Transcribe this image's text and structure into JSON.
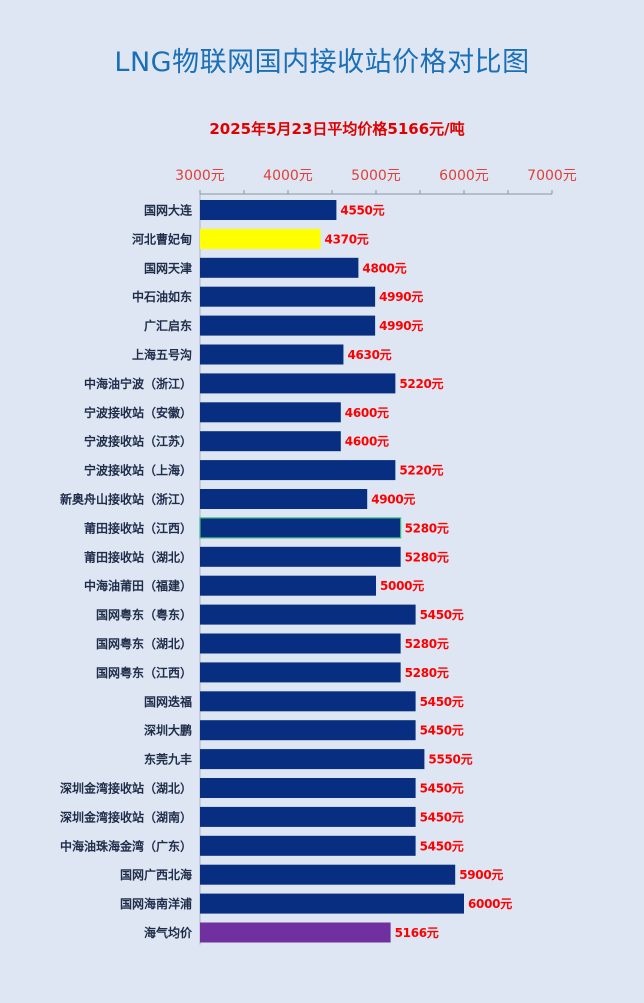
{
  "title": "LNG物联网国内接收站价格对比图",
  "subtitle": "2025年5月23日平均价格5166元/吨",
  "chart_data": {
    "type": "bar",
    "orientation": "horizontal",
    "xlim": [
      3000,
      7000
    ],
    "ticks": [
      {
        "value": 3000,
        "label": "3000元"
      },
      {
        "value": 4000,
        "label": "4000元"
      },
      {
        "value": 5000,
        "label": "5000元"
      },
      {
        "value": 6000,
        "label": "6000元"
      },
      {
        "value": 7000,
        "label": "7000元"
      }
    ],
    "axis_position": "top",
    "grid": false,
    "bars": [
      {
        "category": "国网大连",
        "value": 4550,
        "label": "4550元",
        "color": "#082e82"
      },
      {
        "category": "河北曹妃甸",
        "value": 4370,
        "label": "4370元",
        "color": "#ffff00"
      },
      {
        "category": "国网天津",
        "value": 4800,
        "label": "4800元",
        "color": "#082e82"
      },
      {
        "category": "中石油如东",
        "value": 4990,
        "label": "4990元",
        "color": "#082e82"
      },
      {
        "category": "广汇启东",
        "value": 4990,
        "label": "4990元",
        "color": "#082e82"
      },
      {
        "category": "上海五号沟",
        "value": 4630,
        "label": "4630元",
        "color": "#082e82"
      },
      {
        "category": "中海油宁波（浙江）",
        "value": 5220,
        "label": "5220元",
        "color": "#082e82"
      },
      {
        "category": "宁波接收站（安徽）",
        "value": 4600,
        "label": "4600元",
        "color": "#082e82"
      },
      {
        "category": "宁波接收站（江苏）",
        "value": 4600,
        "label": "4600元",
        "color": "#082e82"
      },
      {
        "category": "宁波接收站（上海）",
        "value": 5220,
        "label": "5220元",
        "color": "#082e82"
      },
      {
        "category": "新奥舟山接收站（浙江）",
        "value": 4900,
        "label": "4900元",
        "color": "#082e82"
      },
      {
        "category": "莆田接收站（江西）",
        "value": 5280,
        "label": "5280元",
        "color": "#082e82",
        "outline": "#3fbf7f"
      },
      {
        "category": "莆田接收站（湖北）",
        "value": 5280,
        "label": "5280元",
        "color": "#082e82"
      },
      {
        "category": "中海油莆田（福建）",
        "value": 5000,
        "label": "5000元",
        "color": "#082e82"
      },
      {
        "category": "国网粤东（粤东）",
        "value": 5450,
        "label": "5450元",
        "color": "#082e82"
      },
      {
        "category": "国网粤东（湖北）",
        "value": 5280,
        "label": "5280元",
        "color": "#082e82"
      },
      {
        "category": "国网粤东（江西）",
        "value": 5280,
        "label": "5280元",
        "color": "#082e82"
      },
      {
        "category": "国网迭福",
        "value": 5450,
        "label": "5450元",
        "color": "#082e82"
      },
      {
        "category": "深圳大鹏",
        "value": 5450,
        "label": "5450元",
        "color": "#082e82"
      },
      {
        "category": "东莞九丰",
        "value": 5550,
        "label": "5550元",
        "color": "#082e82"
      },
      {
        "category": "深圳金湾接收站（湖北）",
        "value": 5450,
        "label": "5450元",
        "color": "#082e82"
      },
      {
        "category": "深圳金湾接收站（湖南）",
        "value": 5450,
        "label": "5450元",
        "color": "#082e82"
      },
      {
        "category": "中海油珠海金湾（广东）",
        "value": 5450,
        "label": "5450元",
        "color": "#082e82"
      },
      {
        "category": "国网广西北海",
        "value": 5900,
        "label": "5900元",
        "color": "#082e82"
      },
      {
        "category": "国网海南洋浦",
        "value": 6000,
        "label": "6000元",
        "color": "#082e82"
      },
      {
        "category": "海气均价",
        "value": 5166,
        "label": "5166元",
        "color": "#7030a0"
      }
    ]
  },
  "colors": {
    "background": "#dde6f2",
    "title": "#1a6fb8",
    "subtitle": "#e00000",
    "bar_default": "#082e82",
    "value_label": "#ff0000",
    "tick_label": "#e0403a"
  }
}
